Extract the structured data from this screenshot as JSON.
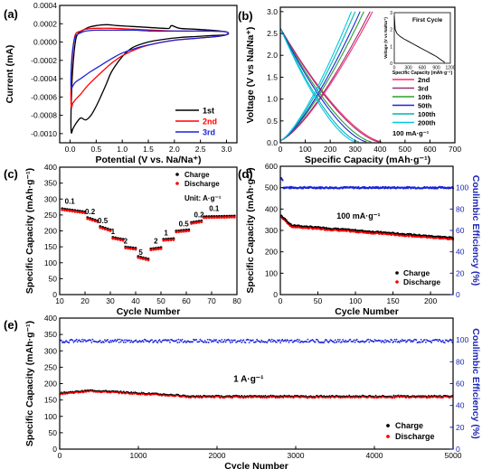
{
  "chart_data": [
    {
      "panel": "(a)",
      "type": "line",
      "xlabel": "Potential (V vs. Na/Na⁺)",
      "ylabel": "Current (mA)",
      "xlim": [
        -0.2,
        3.2
      ],
      "ylim": [
        -0.0011,
        0.0004
      ],
      "xticks": [
        {
          "v": 0.0,
          "label": "0.0"
        },
        {
          "v": 0.5,
          "label": "0.5"
        },
        {
          "v": 1.0,
          "label": "1.0"
        },
        {
          "v": 1.5,
          "label": "1.5"
        },
        {
          "v": 2.0,
          "label": "2.0"
        },
        {
          "v": 2.5,
          "label": "2.5"
        },
        {
          "v": 3.0,
          "label": "3.0"
        }
      ],
      "yticks": [
        {
          "v": 0.0004,
          "label": "0.0004"
        },
        {
          "v": 0.0002,
          "label": "0.0002"
        },
        {
          "v": 0.0,
          "label": "0.0000"
        },
        {
          "v": -0.0002,
          "label": "-0.0002"
        },
        {
          "v": -0.0004,
          "label": "-0.0004"
        },
        {
          "v": -0.0006,
          "label": "-0.0006"
        },
        {
          "v": -0.0008,
          "label": "-0.0008"
        },
        {
          "v": -0.001,
          "label": "-0.0010"
        }
      ],
      "legend_position": "bottom-right",
      "series": [
        {
          "name": "1st",
          "color": "#000000",
          "closed": true,
          "x": [
            0.02,
            0.05,
            0.1,
            0.2,
            0.3,
            0.4,
            0.5,
            0.6,
            0.7,
            0.8,
            1.0,
            1.2,
            1.5,
            1.8,
            2.1,
            2.4,
            2.7,
            3.0,
            3.0,
            2.7,
            2.4,
            2.1,
            1.95,
            1.9,
            1.8,
            1.5,
            1.2,
            0.9,
            0.7,
            0.5,
            0.35,
            0.25,
            0.15,
            0.1,
            0.05,
            0.02
          ],
          "y": [
            -0.00098,
            -0.00095,
            -0.0009,
            -0.00083,
            -0.00085,
            -0.0008,
            -0.0007,
            -0.00058,
            -0.00045,
            -0.00032,
            -0.00016,
            -6e-05,
            0.0,
            3e-05,
            5e-05,
            6e-05,
            7e-05,
            8e-05,
            0.00011,
            0.00013,
            0.00014,
            0.00015,
            0.00018,
            0.00015,
            0.00015,
            0.00016,
            0.00017,
            0.00018,
            0.00019,
            0.00018,
            0.00016,
            0.00013,
            9e-05,
            0.0,
            -0.0003,
            -0.0007
          ]
        },
        {
          "name": "2nd",
          "color": "#ff0000",
          "closed": true,
          "x": [
            0.02,
            0.05,
            0.1,
            0.2,
            0.3,
            0.4,
            0.6,
            0.8,
            1.0,
            1.3,
            1.6,
            2.0,
            2.4,
            2.8,
            3.0,
            3.0,
            2.7,
            2.4,
            2.0,
            1.6,
            1.2,
            0.8,
            0.5,
            0.3,
            0.2,
            0.1,
            0.05,
            0.02
          ],
          "y": [
            -0.0007,
            -0.00067,
            -0.00063,
            -0.00057,
            -0.0005,
            -0.00044,
            -0.00033,
            -0.00023,
            -0.00015,
            -7e-05,
            -2e-05,
            2e-05,
            4e-05,
            6e-05,
            8e-05,
            0.00011,
            0.00012,
            0.00012,
            0.00012,
            0.00013,
            0.00014,
            0.00015,
            0.00015,
            0.00014,
            0.00012,
            8e-05,
            -0.0001,
            -0.0004
          ]
        },
        {
          "name": "3rd",
          "color": "#1a24d8",
          "closed": true,
          "x": [
            0.02,
            0.05,
            0.1,
            0.2,
            0.3,
            0.4,
            0.6,
            0.8,
            1.0,
            1.3,
            1.6,
            2.0,
            2.4,
            2.8,
            3.0,
            3.0,
            2.7,
            2.4,
            2.0,
            1.6,
            1.2,
            0.8,
            0.5,
            0.3,
            0.2,
            0.1,
            0.05,
            0.02
          ],
          "y": [
            -0.0005,
            -0.00048,
            -0.00044,
            -0.0004,
            -0.00036,
            -0.00032,
            -0.00025,
            -0.00018,
            -0.00012,
            -6e-05,
            -2e-05,
            2e-05,
            4e-05,
            6e-05,
            8e-05,
            0.00011,
            0.00012,
            0.00012,
            0.00012,
            0.00012,
            0.00013,
            0.00013,
            0.00013,
            0.00012,
            0.0001,
            6e-05,
            -8e-05,
            -0.0003
          ]
        }
      ]
    },
    {
      "panel": "(b)",
      "type": "line",
      "xlabel": "Specific Capacity (mAh·g⁻¹)",
      "ylabel": "Voltage (V vs Na/Na⁺)",
      "xlim": [
        0,
        700
      ],
      "ylim": [
        0,
        3.1
      ],
      "xticks": [
        {
          "v": 0,
          "label": "0"
        },
        {
          "v": 100,
          "label": "100"
        },
        {
          "v": 200,
          "label": "200"
        },
        {
          "v": 300,
          "label": "300"
        },
        {
          "v": 400,
          "label": "400"
        },
        {
          "v": 500,
          "label": "500"
        },
        {
          "v": 600,
          "label": "600"
        },
        {
          "v": 700,
          "label": "700"
        }
      ],
      "yticks": [
        {
          "v": 0.0,
          "label": "0.0"
        },
        {
          "v": 0.5,
          "label": "0.5"
        },
        {
          "v": 1.0,
          "label": "1.0"
        },
        {
          "v": 1.5,
          "label": "1.5"
        },
        {
          "v": 2.0,
          "label": "2.0"
        },
        {
          "v": 2.5,
          "label": "2.5"
        },
        {
          "v": 3.0,
          "label": "3.0"
        }
      ],
      "legend_position": "right",
      "annotation": "100 mA·g⁻¹",
      "series": [
        {
          "name": "2nd",
          "color": "#ff2a6a",
          "discharge_capacity": 405,
          "charge_capacity": 370
        },
        {
          "name": "3rd",
          "color": "#9b2c7a",
          "discharge_capacity": 395,
          "charge_capacity": 360
        },
        {
          "name": "10th",
          "color": "#2aa02a",
          "discharge_capacity": 365,
          "charge_capacity": 335
        },
        {
          "name": "50th",
          "color": "#1a24d8",
          "discharge_capacity": 345,
          "charge_capacity": 320
        },
        {
          "name": "100th",
          "color": "#00b4b4",
          "discharge_capacity": 315,
          "charge_capacity": 300
        },
        {
          "name": "200th",
          "color": "#00c8e6",
          "discharge_capacity": 300,
          "charge_capacity": 285
        }
      ],
      "inset": {
        "title": "First Cycle",
        "xlabel": "Specific Capacity (mAh·g⁻¹)",
        "ylabel": "Voltage (V vs Na/Na⁺)",
        "xlim": [
          0,
          1200
        ],
        "ylim": [
          0,
          3
        ],
        "xticks": [
          {
            "v": 0,
            "label": "0"
          },
          {
            "v": 300,
            "label": "300"
          },
          {
            "v": 600,
            "label": "600"
          },
          {
            "v": 900,
            "label": "900"
          },
          {
            "v": 1200,
            "label": "1200"
          }
        ],
        "yticks": [
          {
            "v": 0,
            "label": "0"
          },
          {
            "v": 1,
            "label": "1"
          },
          {
            "v": 2,
            "label": "2"
          },
          {
            "v": 3,
            "label": "3"
          }
        ],
        "x": [
          0,
          20,
          60,
          120,
          200,
          300,
          400,
          500,
          600,
          700,
          800,
          900,
          1000,
          1080
        ],
        "y": [
          2.8,
          2.0,
          1.75,
          1.6,
          1.45,
          1.3,
          1.15,
          1.0,
          0.85,
          0.7,
          0.55,
          0.4,
          0.2,
          0.05
        ]
      }
    },
    {
      "panel": "(c)",
      "type": "scatter",
      "xlabel": "Cycle Number",
      "ylabel": "Specific Capacity (mAh·g⁻¹)",
      "xlim": [
        10,
        80
      ],
      "ylim": [
        0,
        400
      ],
      "xticks": [
        {
          "v": 10,
          "label": "10"
        },
        {
          "v": 20,
          "label": "20"
        },
        {
          "v": 30,
          "label": "30"
        },
        {
          "v": 40,
          "label": "40"
        },
        {
          "v": 50,
          "label": "50"
        },
        {
          "v": 60,
          "label": "60"
        },
        {
          "v": 70,
          "label": "70"
        },
        {
          "v": 80,
          "label": "80"
        }
      ],
      "yticks": [
        {
          "v": 0,
          "label": "0"
        },
        {
          "v": 50,
          "label": "50"
        },
        {
          "v": 100,
          "label": "100"
        },
        {
          "v": 150,
          "label": "150"
        },
        {
          "v": 200,
          "label": "200"
        },
        {
          "v": 250,
          "label": "250"
        },
        {
          "v": 300,
          "label": "300"
        },
        {
          "v": 350,
          "label": "350"
        },
        {
          "v": 400,
          "label": "400"
        }
      ],
      "legend": [
        {
          "name": "Charge",
          "color": "#000000"
        },
        {
          "name": "Discharge",
          "color": "#ff0000"
        }
      ],
      "unit_label": "Unit: A·g⁻¹",
      "segments": [
        {
          "rate": "0.1",
          "start": 11,
          "end": 20,
          "c0": 268,
          "c1": 258,
          "label_x": 14,
          "label_y": 285
        },
        {
          "rate": "0.2",
          "start": 21,
          "end": 25,
          "c0": 240,
          "c1": 230,
          "label_x": 22,
          "label_y": 253
        },
        {
          "rate": "0.5",
          "start": 26,
          "end": 30,
          "c0": 212,
          "c1": 202,
          "label_x": 27,
          "label_y": 224
        },
        {
          "rate": "1",
          "start": 31,
          "end": 35,
          "c0": 178,
          "c1": 172,
          "label_x": 31,
          "label_y": 190
        },
        {
          "rate": "2",
          "start": 36,
          "end": 40,
          "c0": 148,
          "c1": 144,
          "label_x": 36,
          "label_y": 160
        },
        {
          "rate": "5",
          "start": 41,
          "end": 45,
          "c0": 118,
          "c1": 110,
          "label_x": 42,
          "label_y": 125
        },
        {
          "rate": "2",
          "start": 46,
          "end": 50,
          "c0": 142,
          "c1": 146,
          "label_x": 48,
          "label_y": 160
        },
        {
          "rate": "1",
          "start": 51,
          "end": 55,
          "c0": 172,
          "c1": 174,
          "label_x": 52,
          "label_y": 186
        },
        {
          "rate": "0.5",
          "start": 56,
          "end": 61,
          "c0": 198,
          "c1": 202,
          "label_x": 59,
          "label_y": 214
        },
        {
          "rate": "0.2",
          "start": 62,
          "end": 66,
          "c0": 225,
          "c1": 230,
          "label_x": 65,
          "label_y": 242
        },
        {
          "rate": "0.1",
          "start": 67,
          "end": 79,
          "c0": 243,
          "c1": 245,
          "label_x": 71,
          "label_y": 262
        }
      ]
    },
    {
      "panel": "(d)",
      "type": "scatter",
      "xlabel": "Cycle Number",
      "ylabel": "Specific Capacity (mAh·g⁻¹)",
      "y2label": "Coulimbic Efficiency (%)",
      "xlim": [
        0,
        230
      ],
      "ylim": [
        0,
        600
      ],
      "y2lim": [
        0,
        120
      ],
      "xticks": [
        {
          "v": 0,
          "label": "0"
        },
        {
          "v": 50,
          "label": "50"
        },
        {
          "v": 100,
          "label": "100"
        },
        {
          "v": 150,
          "label": "150"
        },
        {
          "v": 200,
          "label": "200"
        }
      ],
      "yticks": [
        {
          "v": 0,
          "label": "0"
        },
        {
          "v": 100,
          "label": "100"
        },
        {
          "v": 200,
          "label": "200"
        },
        {
          "v": 300,
          "label": "300"
        },
        {
          "v": 400,
          "label": "400"
        },
        {
          "v": 500,
          "label": "500"
        },
        {
          "v": 600,
          "label": "600"
        }
      ],
      "y2ticks": [
        {
          "v": 0,
          "label": "0"
        },
        {
          "v": 20,
          "label": "20"
        },
        {
          "v": 40,
          "label": "40"
        },
        {
          "v": 60,
          "label": "60"
        },
        {
          "v": 80,
          "label": "80"
        },
        {
          "v": 100,
          "label": "100"
        }
      ],
      "annotation": "100 mA·g⁻¹",
      "legend": [
        {
          "name": "Charge",
          "color": "#000000"
        },
        {
          "name": "Discharge",
          "color": "#ff0000"
        }
      ],
      "cycles": 230,
      "capacity_curve": {
        "start": 370,
        "knee": 320,
        "end": 262
      },
      "efficiency": {
        "start": 110,
        "steady": 100
      }
    },
    {
      "panel": "(e)",
      "type": "scatter",
      "xlabel": "Cycle Number",
      "ylabel": "Specific Capacity (mAh·g⁻¹)",
      "y2label": "Coulimbic Efficiency (%)",
      "xlim": [
        0,
        5000
      ],
      "ylim": [
        0,
        400
      ],
      "y2lim": [
        0,
        120
      ],
      "xticks": [
        {
          "v": 0,
          "label": "0"
        },
        {
          "v": 1000,
          "label": "1000"
        },
        {
          "v": 2000,
          "label": "2000"
        },
        {
          "v": 3000,
          "label": "3000"
        },
        {
          "v": 4000,
          "label": "4000"
        },
        {
          "v": 5000,
          "label": "5000"
        }
      ],
      "yticks": [
        {
          "v": 0,
          "label": "0"
        },
        {
          "v": 50,
          "label": "50"
        },
        {
          "v": 100,
          "label": "100"
        },
        {
          "v": 150,
          "label": "150"
        },
        {
          "v": 200,
          "label": "200"
        },
        {
          "v": 250,
          "label": "250"
        },
        {
          "v": 300,
          "label": "300"
        },
        {
          "v": 350,
          "label": "350"
        },
        {
          "v": 400,
          "label": "400"
        }
      ],
      "y2ticks": [
        {
          "v": 0,
          "label": "0"
        },
        {
          "v": 20,
          "label": "20"
        },
        {
          "v": 40,
          "label": "40"
        },
        {
          "v": 60,
          "label": "60"
        },
        {
          "v": 80,
          "label": "80"
        },
        {
          "v": 100,
          "label": "100"
        }
      ],
      "annotation": "1 A·g⁻¹",
      "legend": [
        {
          "name": "Charge",
          "color": "#000000"
        },
        {
          "name": "Discharge",
          "color": "#ff0000"
        }
      ],
      "cycles": 5000,
      "capacity_curve": {
        "start": 170,
        "hump": 178,
        "end": 160
      },
      "efficiency": {
        "steady": 99
      }
    }
  ]
}
